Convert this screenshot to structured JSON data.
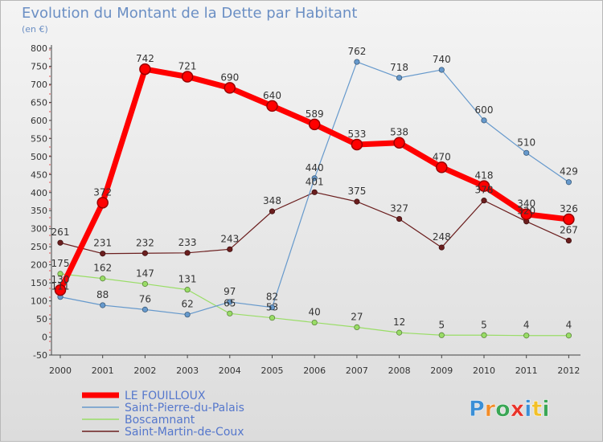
{
  "chart_data": {
    "type": "line",
    "title": "Evolution du Montant de la Dette par Habitant",
    "subtitle": "(en €)",
    "xlabel": "",
    "ylabel": "",
    "categories": [
      "2000",
      "2001",
      "2002",
      "2003",
      "2004",
      "2005",
      "2006",
      "2007",
      "2008",
      "2009",
      "2010",
      "2011",
      "2012"
    ],
    "ylim": [
      -50,
      800
    ],
    "yticks": [
      -50,
      0,
      50,
      100,
      150,
      200,
      250,
      300,
      350,
      400,
      450,
      500,
      550,
      600,
      650,
      700,
      750,
      800
    ],
    "grid": false,
    "legend_position": "bottom-left",
    "series": [
      {
        "name": "Saint-Martin-de-Coux",
        "color": "#6b1e1e",
        "values": [
          261,
          231,
          232,
          233,
          243,
          348,
          401,
          375,
          327,
          248,
          378,
          320,
          267
        ],
        "labels": [
          "261",
          "231",
          "232",
          "233",
          "243",
          "348",
          "401",
          "375",
          "327",
          "248",
          "378",
          "320",
          "267"
        ]
      },
      {
        "name": "Boscamnant",
        "color": "#99dd66",
        "values": [
          175,
          162,
          147,
          131,
          65,
          53,
          40,
          27,
          12,
          5,
          5,
          4,
          4
        ],
        "labels": [
          "175",
          "162",
          "147",
          "131",
          "65",
          "53",
          "40",
          "27",
          "12",
          "5",
          "5",
          "4",
          "4"
        ]
      },
      {
        "name": "Saint-Pierre-du-Palais",
        "color": "#6699cc",
        "values": [
          111,
          88,
          76,
          62,
          97,
          82,
          440,
          762,
          718,
          740,
          600,
          510,
          429
        ],
        "labels": [
          "111",
          "88",
          "76",
          "62",
          "97",
          "82",
          "440",
          "762",
          "718",
          "740",
          "600",
          "510",
          "429"
        ]
      },
      {
        "name": "LE FOUILLOUX",
        "color": "#ff0000",
        "values": [
          130,
          372,
          742,
          721,
          690,
          640,
          589,
          533,
          538,
          470,
          418,
          340,
          326
        ],
        "labels": [
          "130",
          "372",
          "742",
          "721",
          "690",
          "640",
          "589",
          "533",
          "538",
          "470",
          "418",
          "340",
          "326"
        ]
      }
    ]
  },
  "legend_order": [
    "LE FOUILLOUX",
    "Saint-Pierre-du-Palais",
    "Boscamnant",
    "Saint-Martin-de-Coux"
  ],
  "logo": {
    "text": "Proxiti",
    "letters": [
      {
        "ch": "P",
        "color": "#3b8fd6"
      },
      {
        "ch": "r",
        "color": "#f28c28"
      },
      {
        "ch": "o",
        "color": "#3aa655"
      },
      {
        "ch": "x",
        "color": "#e8332a"
      },
      {
        "ch": "i",
        "color": "#3b8fd6"
      },
      {
        "ch": "t",
        "color": "#f2c028"
      },
      {
        "ch": "i",
        "color": "#3aa655"
      }
    ]
  }
}
